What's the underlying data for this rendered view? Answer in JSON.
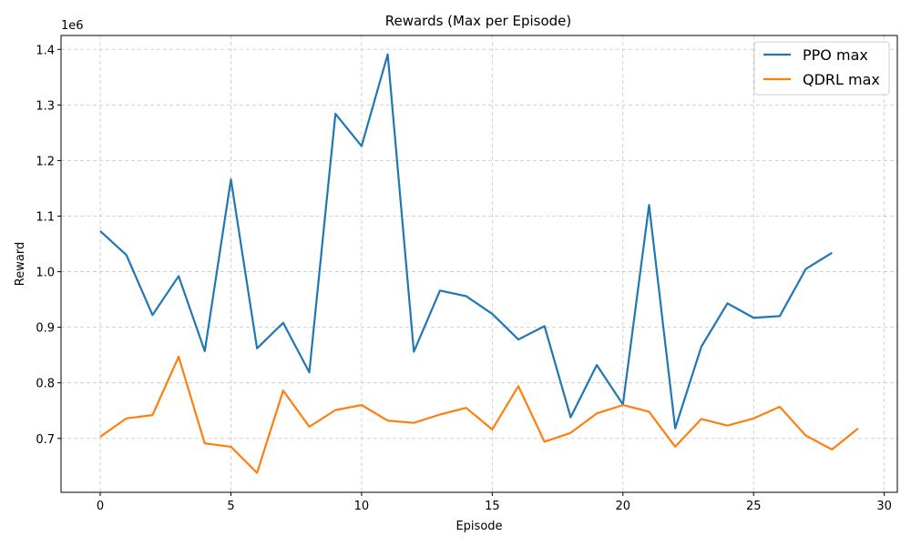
{
  "chart_data": {
    "type": "line",
    "title": "Rewards (Max per Episode)",
    "xlabel": "Episode",
    "ylabel": "Reward",
    "y_offset_label": "1e6",
    "xlim": [
      -1.5,
      30.5
    ],
    "ylim": [
      0.603,
      1.425
    ],
    "xticks": [
      0,
      5,
      10,
      15,
      20,
      25,
      30
    ],
    "yticks": [
      0.7,
      0.8,
      0.9,
      1.0,
      1.1,
      1.2,
      1.3,
      1.4
    ],
    "ytick_labels": [
      "0.7",
      "0.8",
      "0.9",
      "1.0",
      "1.1",
      "1.2",
      "1.3",
      "1.4"
    ],
    "grid": true,
    "legend_position": "top-right",
    "series": [
      {
        "name": "PPO max",
        "color": "#1f77b4",
        "x": [
          0,
          1,
          2,
          3,
          4,
          5,
          6,
          7,
          8,
          9,
          10,
          11,
          12,
          13,
          14,
          15,
          16,
          17,
          18,
          19,
          20,
          21,
          22,
          23,
          24,
          25,
          26,
          27,
          28
        ],
        "values": [
          1.073,
          1.03,
          0.922,
          0.992,
          0.857,
          1.166,
          0.862,
          0.908,
          0.819,
          1.284,
          1.226,
          1.391,
          0.856,
          0.966,
          0.956,
          0.924,
          0.878,
          0.902,
          0.738,
          0.832,
          0.761,
          1.12,
          0.718,
          0.865,
          0.943,
          0.917,
          0.92,
          1.005,
          1.034
        ]
      },
      {
        "name": "QDRL max",
        "color": "#ff7f0e",
        "x": [
          0,
          1,
          2,
          3,
          4,
          5,
          6,
          7,
          8,
          9,
          10,
          11,
          12,
          13,
          14,
          15,
          16,
          17,
          18,
          19,
          20,
          21,
          22,
          23,
          24,
          25,
          26,
          27,
          28,
          29
        ],
        "values": [
          0.703,
          0.736,
          0.742,
          0.847,
          0.691,
          0.685,
          0.638,
          0.786,
          0.721,
          0.751,
          0.76,
          0.732,
          0.728,
          0.743,
          0.755,
          0.716,
          0.794,
          0.694,
          0.71,
          0.745,
          0.76,
          0.748,
          0.685,
          0.735,
          0.723,
          0.736,
          0.757,
          0.705,
          0.68,
          0.718
        ]
      }
    ]
  }
}
